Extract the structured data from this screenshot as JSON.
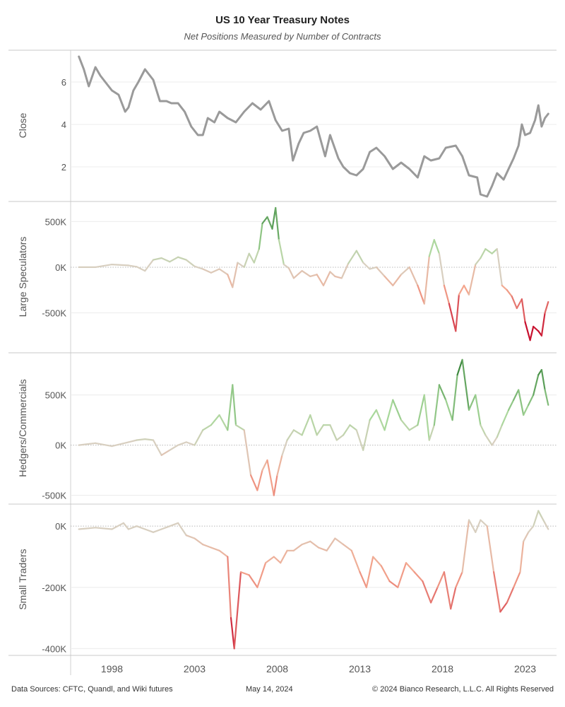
{
  "title": "US 10 Year Treasury Notes",
  "subtitle": "Net Positions Measured by Number of Contracts",
  "footer": {
    "sources": "Data Sources: CFTC, Quandl, and Wiki futures",
    "date": "May 14, 2024",
    "copyright": "© 2024 Bianco Research, L.L.C. All Rights Reserved"
  },
  "colors": {
    "close_line": "#9a9a9a",
    "positive_high": "#2e7d32",
    "positive_low": "#a8d89a",
    "neutral": "#d8cfc0",
    "negative_low": "#f4a88f",
    "negative_high": "#c8102e"
  },
  "chart_data": [
    {
      "type": "line",
      "panel": "close",
      "xlabel": "",
      "ylabel": "Close",
      "xlim": [
        1995.5,
        2024.9
      ],
      "ylim": [
        0.4,
        7.5
      ],
      "yticks": [
        2,
        4,
        6
      ],
      "ytick_labels": [
        "2",
        "4",
        "6"
      ],
      "grid": true,
      "color_mode": "solid",
      "series": [
        {
          "x": [
            1996.0,
            1996.3,
            1996.6,
            1997.0,
            1997.3,
            1997.6,
            1998.0,
            1998.4,
            1998.8,
            1999.0,
            1999.3,
            1999.6,
            2000.0,
            2000.5,
            2000.9,
            2001.3,
            2001.6,
            2002.0,
            2002.4,
            2002.8,
            2003.2,
            2003.5,
            2003.8,
            2004.2,
            2004.5,
            2005.0,
            2005.5,
            2006.0,
            2006.5,
            2007.0,
            2007.5,
            2007.9,
            2008.3,
            2008.7,
            2008.95,
            2009.3,
            2009.6,
            2010.0,
            2010.4,
            2010.9,
            2011.2,
            2011.7,
            2012.0,
            2012.4,
            2012.8,
            2013.2,
            2013.6,
            2014.0,
            2014.5,
            2015.0,
            2015.5,
            2016.0,
            2016.5,
            2016.9,
            2017.3,
            2017.8,
            2018.2,
            2018.8,
            2019.2,
            2019.6,
            2020.1,
            2020.3,
            2020.7,
            2021.0,
            2021.3,
            2021.7,
            2022.0,
            2022.3,
            2022.6,
            2022.8,
            2023.0,
            2023.3,
            2023.6,
            2023.8,
            2024.0,
            2024.2,
            2024.4
          ],
          "y": [
            7.2,
            6.6,
            5.8,
            6.7,
            6.3,
            6.0,
            5.6,
            5.4,
            4.6,
            4.8,
            5.6,
            6.0,
            6.6,
            6.1,
            5.1,
            5.1,
            5.0,
            5.0,
            4.6,
            3.9,
            3.5,
            3.5,
            4.3,
            4.1,
            4.6,
            4.3,
            4.1,
            4.6,
            5.0,
            4.7,
            5.1,
            4.2,
            3.7,
            3.8,
            2.3,
            3.1,
            3.6,
            3.7,
            3.9,
            2.5,
            3.5,
            2.4,
            2.0,
            1.7,
            1.6,
            1.9,
            2.7,
            2.9,
            2.5,
            1.9,
            2.2,
            1.9,
            1.5,
            2.5,
            2.3,
            2.4,
            2.9,
            3.0,
            2.5,
            1.6,
            1.5,
            0.7,
            0.6,
            1.1,
            1.7,
            1.4,
            1.9,
            2.4,
            3.0,
            4.0,
            3.5,
            3.6,
            4.2,
            4.9,
            3.9,
            4.3,
            4.5
          ]
        }
      ]
    },
    {
      "type": "line",
      "panel": "large_speculators",
      "xlabel": "",
      "ylabel": "Large Speculators",
      "xlim": [
        1995.5,
        2024.9
      ],
      "ylim": [
        -930000,
        720000
      ],
      "yticks": [
        -500000,
        0,
        500000
      ],
      "ytick_labels": [
        "-500K",
        "0K",
        "500K"
      ],
      "grid": true,
      "color_mode": "diverging",
      "color_scale_max": 700000,
      "series": [
        {
          "x": [
            1996.0,
            1997.0,
            1998.0,
            1999.0,
            1999.5,
            2000.0,
            2000.5,
            2001.0,
            2001.5,
            2002.0,
            2002.5,
            2003.0,
            2003.5,
            2004.0,
            2004.5,
            2005.0,
            2005.3,
            2005.6,
            2006.0,
            2006.3,
            2006.6,
            2006.9,
            2007.1,
            2007.4,
            2007.7,
            2007.9,
            2008.1,
            2008.4,
            2008.7,
            2009.0,
            2009.5,
            2010.0,
            2010.4,
            2010.8,
            2011.2,
            2011.5,
            2011.9,
            2012.3,
            2012.8,
            2013.2,
            2013.6,
            2014.0,
            2014.5,
            2015.0,
            2015.5,
            2016.0,
            2016.5,
            2016.9,
            2017.2,
            2017.5,
            2017.8,
            2018.1,
            2018.4,
            2018.8,
            2019.0,
            2019.3,
            2019.6,
            2020.0,
            2020.3,
            2020.6,
            2021.0,
            2021.3,
            2021.6,
            2021.9,
            2022.2,
            2022.5,
            2022.8,
            2023.0,
            2023.3,
            2023.5,
            2023.8,
            2024.0,
            2024.2,
            2024.4
          ],
          "y": [
            0,
            0,
            30000,
            20000,
            5000,
            -40000,
            80000,
            100000,
            60000,
            110000,
            80000,
            10000,
            -20000,
            -60000,
            -20000,
            -80000,
            -220000,
            50000,
            0,
            150000,
            50000,
            200000,
            480000,
            550000,
            420000,
            650000,
            300000,
            30000,
            -10000,
            -120000,
            -40000,
            -100000,
            -80000,
            -200000,
            -50000,
            -100000,
            -120000,
            40000,
            180000,
            50000,
            -20000,
            0,
            -100000,
            -200000,
            -80000,
            0,
            -200000,
            -400000,
            120000,
            300000,
            150000,
            -200000,
            -400000,
            -700000,
            -300000,
            -200000,
            -300000,
            30000,
            100000,
            200000,
            150000,
            200000,
            -200000,
            -250000,
            -320000,
            -450000,
            -350000,
            -600000,
            -800000,
            -650000,
            -700000,
            -750000,
            -500000,
            -380000
          ]
        }
      ]
    },
    {
      "type": "line",
      "panel": "hedgers_commercials",
      "xlabel": "",
      "ylabel": "Hedgers/Commercials",
      "xlim": [
        1995.5,
        2024.9
      ],
      "ylim": [
        -580000,
        920000
      ],
      "yticks": [
        -500000,
        0,
        500000
      ],
      "ytick_labels": [
        "-500K",
        "0K",
        "500K"
      ],
      "grid": true,
      "color_mode": "diverging",
      "color_scale_max": 850000,
      "series": [
        {
          "x": [
            1996.0,
            1997.0,
            1998.0,
            1999.0,
            1999.5,
            2000.0,
            2000.5,
            2001.0,
            2001.5,
            2002.0,
            2002.5,
            2003.0,
            2003.5,
            2004.0,
            2004.5,
            2005.0,
            2005.3,
            2005.5,
            2006.0,
            2006.4,
            2006.8,
            2007.1,
            2007.4,
            2007.8,
            2008.0,
            2008.3,
            2008.6,
            2009.0,
            2009.5,
            2010.0,
            2010.4,
            2010.8,
            2011.2,
            2011.6,
            2012.0,
            2012.4,
            2012.8,
            2013.2,
            2013.6,
            2014.0,
            2014.5,
            2015.0,
            2015.5,
            2016.0,
            2016.5,
            2016.9,
            2017.2,
            2017.5,
            2017.8,
            2018.2,
            2018.6,
            2018.9,
            2019.2,
            2019.6,
            2020.0,
            2020.3,
            2020.6,
            2021.0,
            2021.3,
            2021.6,
            2022.0,
            2022.3,
            2022.6,
            2022.9,
            2023.2,
            2023.5,
            2023.8,
            2024.0,
            2024.2,
            2024.4
          ],
          "y": [
            0,
            20000,
            -10000,
            30000,
            50000,
            60000,
            50000,
            -100000,
            -50000,
            0,
            30000,
            0,
            150000,
            200000,
            300000,
            150000,
            600000,
            200000,
            150000,
            -300000,
            -450000,
            -250000,
            -150000,
            -500000,
            -300000,
            -100000,
            50000,
            150000,
            100000,
            300000,
            100000,
            200000,
            200000,
            50000,
            100000,
            200000,
            150000,
            -50000,
            250000,
            350000,
            150000,
            450000,
            250000,
            150000,
            200000,
            500000,
            50000,
            200000,
            600000,
            450000,
            250000,
            700000,
            850000,
            350000,
            500000,
            200000,
            100000,
            0,
            80000,
            200000,
            350000,
            450000,
            550000,
            300000,
            400000,
            500000,
            700000,
            750000,
            550000,
            400000
          ]
        }
      ]
    },
    {
      "type": "line",
      "panel": "small_traders",
      "xlabel": "",
      "ylabel": "Small Traders",
      "xlim": [
        1995.5,
        2024.9
      ],
      "ylim": [
        -420000,
        72000
      ],
      "yticks": [
        -400000,
        -200000,
        0
      ],
      "ytick_labels": [
        "-400K",
        "-200K",
        "0K"
      ],
      "grid": true,
      "color_mode": "diverging",
      "color_scale_max": 400000,
      "series": [
        {
          "x": [
            1996.0,
            1997.0,
            1998.0,
            1998.7,
            1999.0,
            1999.5,
            2000.0,
            2000.5,
            2001.0,
            2001.5,
            2002.0,
            2002.5,
            2003.0,
            2003.5,
            2004.0,
            2004.5,
            2005.0,
            2005.2,
            2005.4,
            2005.8,
            2006.3,
            2006.8,
            2007.3,
            2007.8,
            2008.2,
            2008.6,
            2009.0,
            2009.5,
            2010.0,
            2010.5,
            2011.0,
            2011.5,
            2012.0,
            2012.5,
            2013.0,
            2013.4,
            2013.8,
            2014.3,
            2014.8,
            2015.3,
            2015.8,
            2016.3,
            2016.8,
            2017.3,
            2017.7,
            2018.1,
            2018.5,
            2018.8,
            2019.2,
            2019.6,
            2020.0,
            2020.3,
            2020.7,
            2021.1,
            2021.5,
            2021.9,
            2022.3,
            2022.7,
            2022.9,
            2023.2,
            2023.5,
            2023.8,
            2024.0,
            2024.2,
            2024.4
          ],
          "y": [
            -10000,
            -5000,
            -10000,
            10000,
            -10000,
            0,
            -10000,
            -20000,
            -10000,
            0,
            10000,
            -30000,
            -40000,
            -60000,
            -70000,
            -80000,
            -100000,
            -300000,
            -400000,
            -150000,
            -160000,
            -200000,
            -120000,
            -100000,
            -120000,
            -80000,
            -80000,
            -60000,
            -50000,
            -70000,
            -80000,
            -40000,
            -60000,
            -80000,
            -150000,
            -200000,
            -100000,
            -130000,
            -180000,
            -200000,
            -120000,
            -150000,
            -180000,
            -250000,
            -200000,
            -150000,
            -270000,
            -200000,
            -150000,
            20000,
            -20000,
            20000,
            0,
            -150000,
            -280000,
            -250000,
            -200000,
            -150000,
            -50000,
            -20000,
            0,
            50000,
            30000,
            10000,
            -10000
          ]
        }
      ]
    }
  ],
  "x_axis": {
    "ticks": [
      1998,
      2003,
      2008,
      2013,
      2018,
      2023
    ],
    "tick_labels": [
      "1998",
      "2003",
      "2008",
      "2013",
      "2018",
      "2023"
    ]
  }
}
